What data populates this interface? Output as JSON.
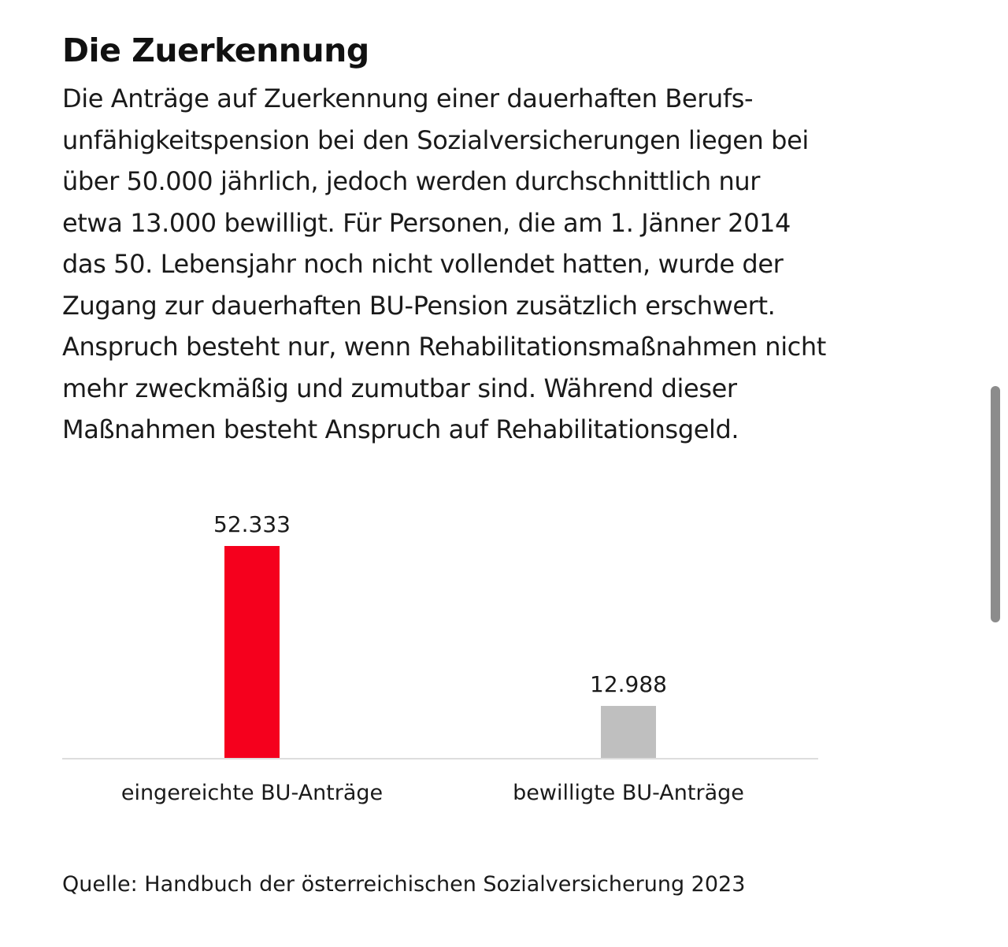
{
  "headline": "Die Zuerkennung",
  "intro_lines": [
    "Die Anträge auf Zuerkennung einer dauerhaften Berufs-",
    "unfähigkeitspension bei den Sozialversicherungen liegen bei",
    "über 50.000 jährlich, jedoch werden durchschnittlich nur",
    "etwa 13.000 bewilligt. Für Personen, die am 1. Jänner 2014",
    "das 50. Lebensjahr noch nicht vollendet hatten, wurde der",
    "Zugang zur dauerhaften BU-Pension zusätzlich erschwert.",
    "Anspruch besteht nur, wenn Rehabilitationsmaßnahmen nicht",
    "mehr zweckmäßig und zumutbar sind. Während dieser",
    "Maßnahmen besteht Anspruch auf Rehabilitationsgeld."
  ],
  "chart_data": {
    "type": "bar",
    "categories": [
      "eingereichte BU-Anträge",
      "bewilligte BU-Anträge"
    ],
    "values": [
      52333,
      12988
    ],
    "value_labels": [
      "52.333",
      "12.988"
    ],
    "colors": [
      "#f5001d",
      "#bfbfbf"
    ],
    "axis_color": "#dddddd",
    "ylim": [
      0,
      52333
    ],
    "grid": false,
    "legend": "none"
  },
  "source": "Quelle: Handbuch der österreichischen Sozialversicherung 2023"
}
